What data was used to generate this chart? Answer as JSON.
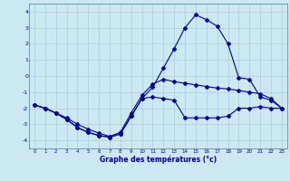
{
  "xlabel": "Graphe des températures (°c)",
  "bg_color": "#cce8f0",
  "grid_color": "#aaccda",
  "line_color": "#0000aa",
  "ylim": [
    -4.5,
    4.5
  ],
  "xlim": [
    -0.5,
    23.5
  ],
  "yticks": [
    -4,
    -3,
    -2,
    -1,
    0,
    1,
    2,
    3,
    4
  ],
  "xticks": [
    0,
    1,
    2,
    3,
    4,
    5,
    6,
    7,
    8,
    9,
    10,
    11,
    12,
    13,
    14,
    15,
    16,
    17,
    18,
    19,
    20,
    21,
    22,
    23
  ],
  "line1_x": [
    0,
    1,
    2,
    3,
    4,
    5,
    6,
    7,
    8,
    9,
    10,
    11,
    12,
    13,
    14,
    15,
    16,
    17,
    18,
    19,
    20,
    21,
    22,
    23
  ],
  "line1_y": [
    -1.8,
    -2.0,
    -2.3,
    -2.7,
    -3.2,
    -3.5,
    -3.7,
    -3.8,
    -3.6,
    -2.5,
    -1.4,
    -1.3,
    -1.4,
    -1.5,
    -2.6,
    -2.6,
    -2.6,
    -2.6,
    -2.5,
    -2.0,
    -2.0,
    -1.9,
    -2.0,
    -2.0
  ],
  "line2_x": [
    0,
    1,
    2,
    3,
    4,
    5,
    6,
    7,
    8,
    9,
    10,
    11,
    12,
    13,
    14,
    15,
    16,
    17,
    18,
    19,
    20,
    21,
    22,
    23
  ],
  "line2_y": [
    -1.8,
    -2.0,
    -2.3,
    -2.7,
    -3.2,
    -3.5,
    -3.7,
    -3.8,
    -3.6,
    -2.5,
    -1.4,
    -0.7,
    0.5,
    1.7,
    3.0,
    3.8,
    3.5,
    3.1,
    2.0,
    -0.1,
    -0.2,
    -1.3,
    -1.5,
    -2.0
  ],
  "line3_x": [
    0,
    1,
    2,
    3,
    4,
    5,
    6,
    7,
    8,
    9,
    10,
    11,
    12,
    13,
    14,
    15,
    16,
    17,
    18,
    19,
    20,
    21,
    22,
    23
  ],
  "line3_y": [
    -1.8,
    -2.0,
    -2.3,
    -2.6,
    -3.0,
    -3.3,
    -3.55,
    -3.75,
    -3.5,
    -2.3,
    -1.2,
    -0.5,
    -0.2,
    -0.35,
    -0.45,
    -0.55,
    -0.65,
    -0.75,
    -0.8,
    -0.9,
    -1.0,
    -1.1,
    -1.4,
    -2.0
  ]
}
